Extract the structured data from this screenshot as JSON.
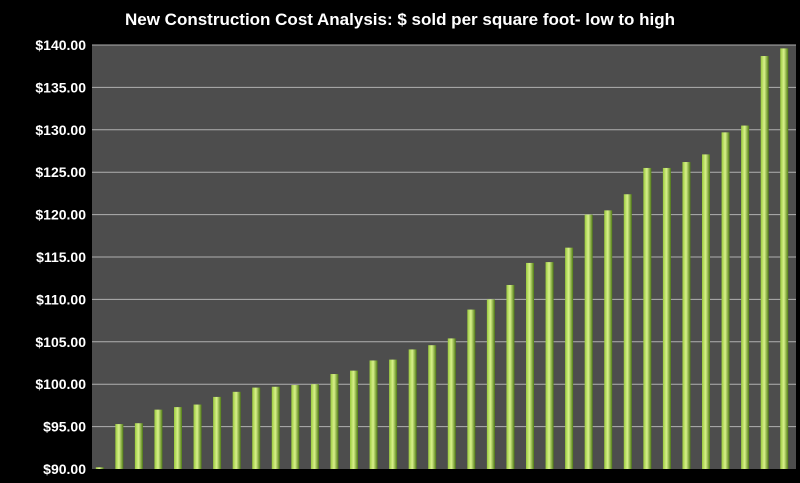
{
  "chart_data": {
    "type": "bar",
    "title": "New Construction Cost Analysis:  $ sold per square foot- low to high",
    "xlabel": "",
    "ylabel": "",
    "ylim": [
      90,
      140
    ],
    "yticks": [
      "$90.00",
      "$95.00",
      "$100.00",
      "$105.00",
      "$110.00",
      "$115.00",
      "$120.00",
      "$125.00",
      "$130.00",
      "$135.00",
      "$140.00"
    ],
    "grid": true,
    "values": [
      90.2,
      95.3,
      95.4,
      97.0,
      97.3,
      97.6,
      98.5,
      99.1,
      99.6,
      99.7,
      99.9,
      100.0,
      101.2,
      101.6,
      102.8,
      102.9,
      104.1,
      104.6,
      105.4,
      108.8,
      110.0,
      111.7,
      114.3,
      114.4,
      116.1,
      120.0,
      120.5,
      122.4,
      125.5,
      125.5,
      126.2,
      127.1,
      129.7,
      130.5,
      138.7,
      139.6
    ],
    "colors": {
      "background": "#000000",
      "plot_area": "#4d4d4d",
      "gridline": "#b0b0b0",
      "bar_light": "#d8f18a",
      "bar_mid": "#9ac93d",
      "bar_dark": "#4f7a14",
      "text": "#ffffff"
    }
  }
}
